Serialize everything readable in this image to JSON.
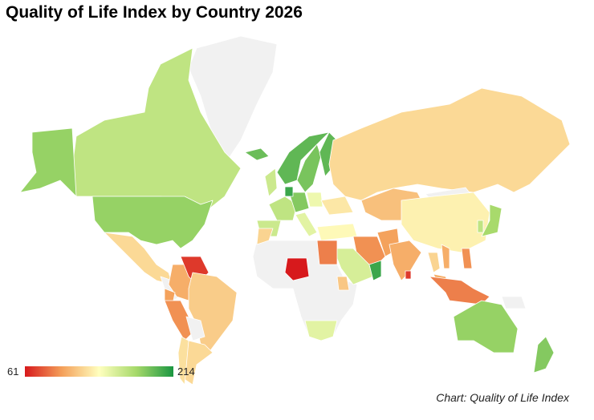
{
  "title": "Quality of Life Index by Country 2026",
  "credit": "Chart: Quality of Life Index",
  "legend": {
    "min": "61",
    "max": "214"
  },
  "colors": {
    "scale": [
      "#d7191c",
      "#f4a05a",
      "#ffffbf",
      "#a6d96a",
      "#1a9641"
    ],
    "no_data": "#f1f1f1",
    "border": "#ffffff"
  },
  "chart_data": {
    "type": "choropleth",
    "title": "Quality of Life Index by Country 2026",
    "range": [
      61,
      214
    ],
    "regions": [
      {
        "id": "greenland",
        "value": null
      },
      {
        "id": "canada",
        "value": 165
      },
      {
        "id": "alaska-usa",
        "value": 180
      },
      {
        "id": "usa",
        "value": 180
      },
      {
        "id": "mexico",
        "value": 122
      },
      {
        "id": "central-america",
        "value": null
      },
      {
        "id": "colombia",
        "value": 105
      },
      {
        "id": "venezuela",
        "value": 70
      },
      {
        "id": "ecuador",
        "value": 100
      },
      {
        "id": "peru",
        "value": 95
      },
      {
        "id": "brazil",
        "value": 117
      },
      {
        "id": "bolivia",
        "value": null
      },
      {
        "id": "argentina",
        "value": 122
      },
      {
        "id": "chile",
        "value": 125
      },
      {
        "id": "iceland",
        "value": 192
      },
      {
        "id": "uk",
        "value": 160
      },
      {
        "id": "norway",
        "value": 195
      },
      {
        "id": "sweden",
        "value": 188
      },
      {
        "id": "finland",
        "value": 195
      },
      {
        "id": "france",
        "value": 165
      },
      {
        "id": "spain",
        "value": 160
      },
      {
        "id": "germany",
        "value": 185
      },
      {
        "id": "netherlands",
        "value": 205
      },
      {
        "id": "poland",
        "value": 145
      },
      {
        "id": "italy",
        "value": 150
      },
      {
        "id": "ukraine",
        "value": 128
      },
      {
        "id": "russia",
        "value": 122
      },
      {
        "id": "kazakhstan",
        "value": 112
      },
      {
        "id": "mongolia",
        "value": null
      },
      {
        "id": "turkey",
        "value": 135
      },
      {
        "id": "iran",
        "value": 95
      },
      {
        "id": "africa-other",
        "value": null
      },
      {
        "id": "saudi-arabia",
        "value": 155
      },
      {
        "id": "oman",
        "value": 205
      },
      {
        "id": "egypt",
        "value": 90
      },
      {
        "id": "nigeria",
        "value": 61
      },
      {
        "id": "kenya",
        "value": 115
      },
      {
        "id": "south-africa",
        "value": 150
      },
      {
        "id": "morocco",
        "value": 120
      },
      {
        "id": "pakistan",
        "value": 100
      },
      {
        "id": "india",
        "value": 105
      },
      {
        "id": "sri-lanka",
        "value": 70
      },
      {
        "id": "china",
        "value": 132
      },
      {
        "id": "thailand",
        "value": 120
      },
      {
        "id": "vietnam",
        "value": 105
      },
      {
        "id": "malaysia",
        "value": 105
      },
      {
        "id": "indonesia",
        "value": 90
      },
      {
        "id": "philippines",
        "value": 95
      },
      {
        "id": "japan",
        "value": 175
      },
      {
        "id": "south-korea",
        "value": 165
      },
      {
        "id": "papua-new-guinea",
        "value": null
      },
      {
        "id": "australia",
        "value": 180
      },
      {
        "id": "new-zealand",
        "value": 185
      }
    ]
  }
}
